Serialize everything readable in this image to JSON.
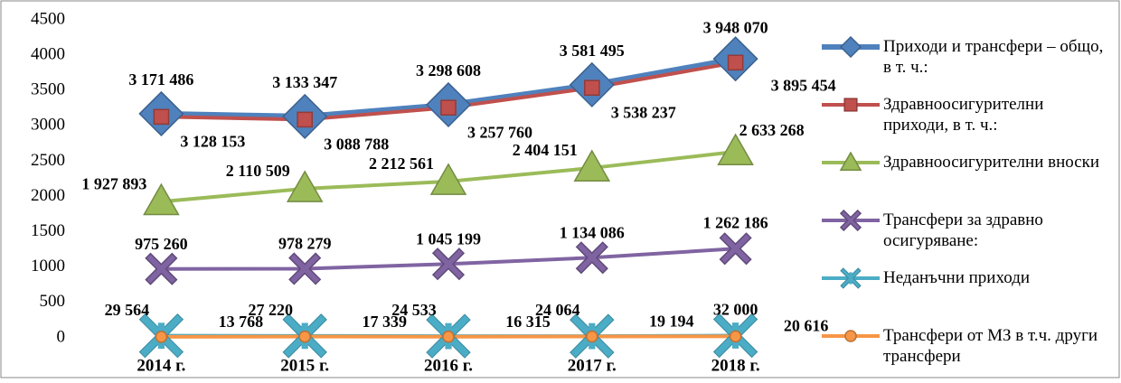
{
  "chart_data": {
    "type": "line",
    "categories": [
      "2014 г.",
      "2015 г.",
      "2016 г.",
      "2017 г.",
      "2018 г."
    ],
    "ylim": [
      0,
      4500
    ],
    "yticks": [
      0,
      500,
      1000,
      1500,
      2000,
      2500,
      3000,
      3500,
      4000,
      4500
    ],
    "grid": false,
    "legend": "right",
    "series": [
      {
        "name": "Приходи и трансфери – общо, в т. ч.:",
        "color": "#4f81bd",
        "marker": "diamond",
        "values": [
          3171.486,
          3133.347,
          3298.608,
          3581.495,
          3948.07
        ],
        "value_labels": [
          "3 171 486",
          "3 133 347",
          "3 298 608",
          "3 581 495",
          "3 948 070"
        ]
      },
      {
        "name": "Здравноосигурителни приходи, в т. ч.:",
        "color": "#c0504d",
        "marker": "square",
        "values": [
          3128.153,
          3088.788,
          3257.76,
          3538.237,
          3895.454
        ],
        "value_labels": [
          "3 128 153",
          "3 088 788",
          "3 257 760",
          "3 538 237",
          "3 895 454"
        ]
      },
      {
        "name": "Здравноосигурителни вноски",
        "color": "#9bbb59",
        "marker": "triangle",
        "values": [
          1927.893,
          2110.509,
          2212.561,
          2404.151,
          2633.268
        ],
        "value_labels": [
          "1 927 893",
          "2 110 509",
          "2 212 561",
          "2 404 151",
          "2 633 268"
        ]
      },
      {
        "name": "Трансфери за здравно осигуряване:",
        "color": "#8064a2",
        "marker": "x",
        "values": [
          975.26,
          978.279,
          1045.199,
          1134.086,
          1262.186
        ],
        "value_labels": [
          "975 260",
          "978 279",
          "1 045 199",
          "1 134 086",
          "1 262 186"
        ]
      },
      {
        "name": "Неданъчни приходи",
        "color": "#4bacc6",
        "marker": "star",
        "values": [
          29.564,
          27.22,
          24.533,
          24.064,
          32.0
        ],
        "value_labels": [
          "29 564",
          "27 220",
          "24 533",
          "24 064",
          "32 000"
        ]
      },
      {
        "name": "Трансфери от МЗ в т.ч. други трансфери",
        "color": "#f79646",
        "marker": "circle",
        "values": [
          13.768,
          17.339,
          16.315,
          19.194,
          20.616
        ],
        "value_labels": [
          "13 768",
          "17 339",
          "16 315",
          "19 194",
          "20 616"
        ]
      }
    ]
  }
}
